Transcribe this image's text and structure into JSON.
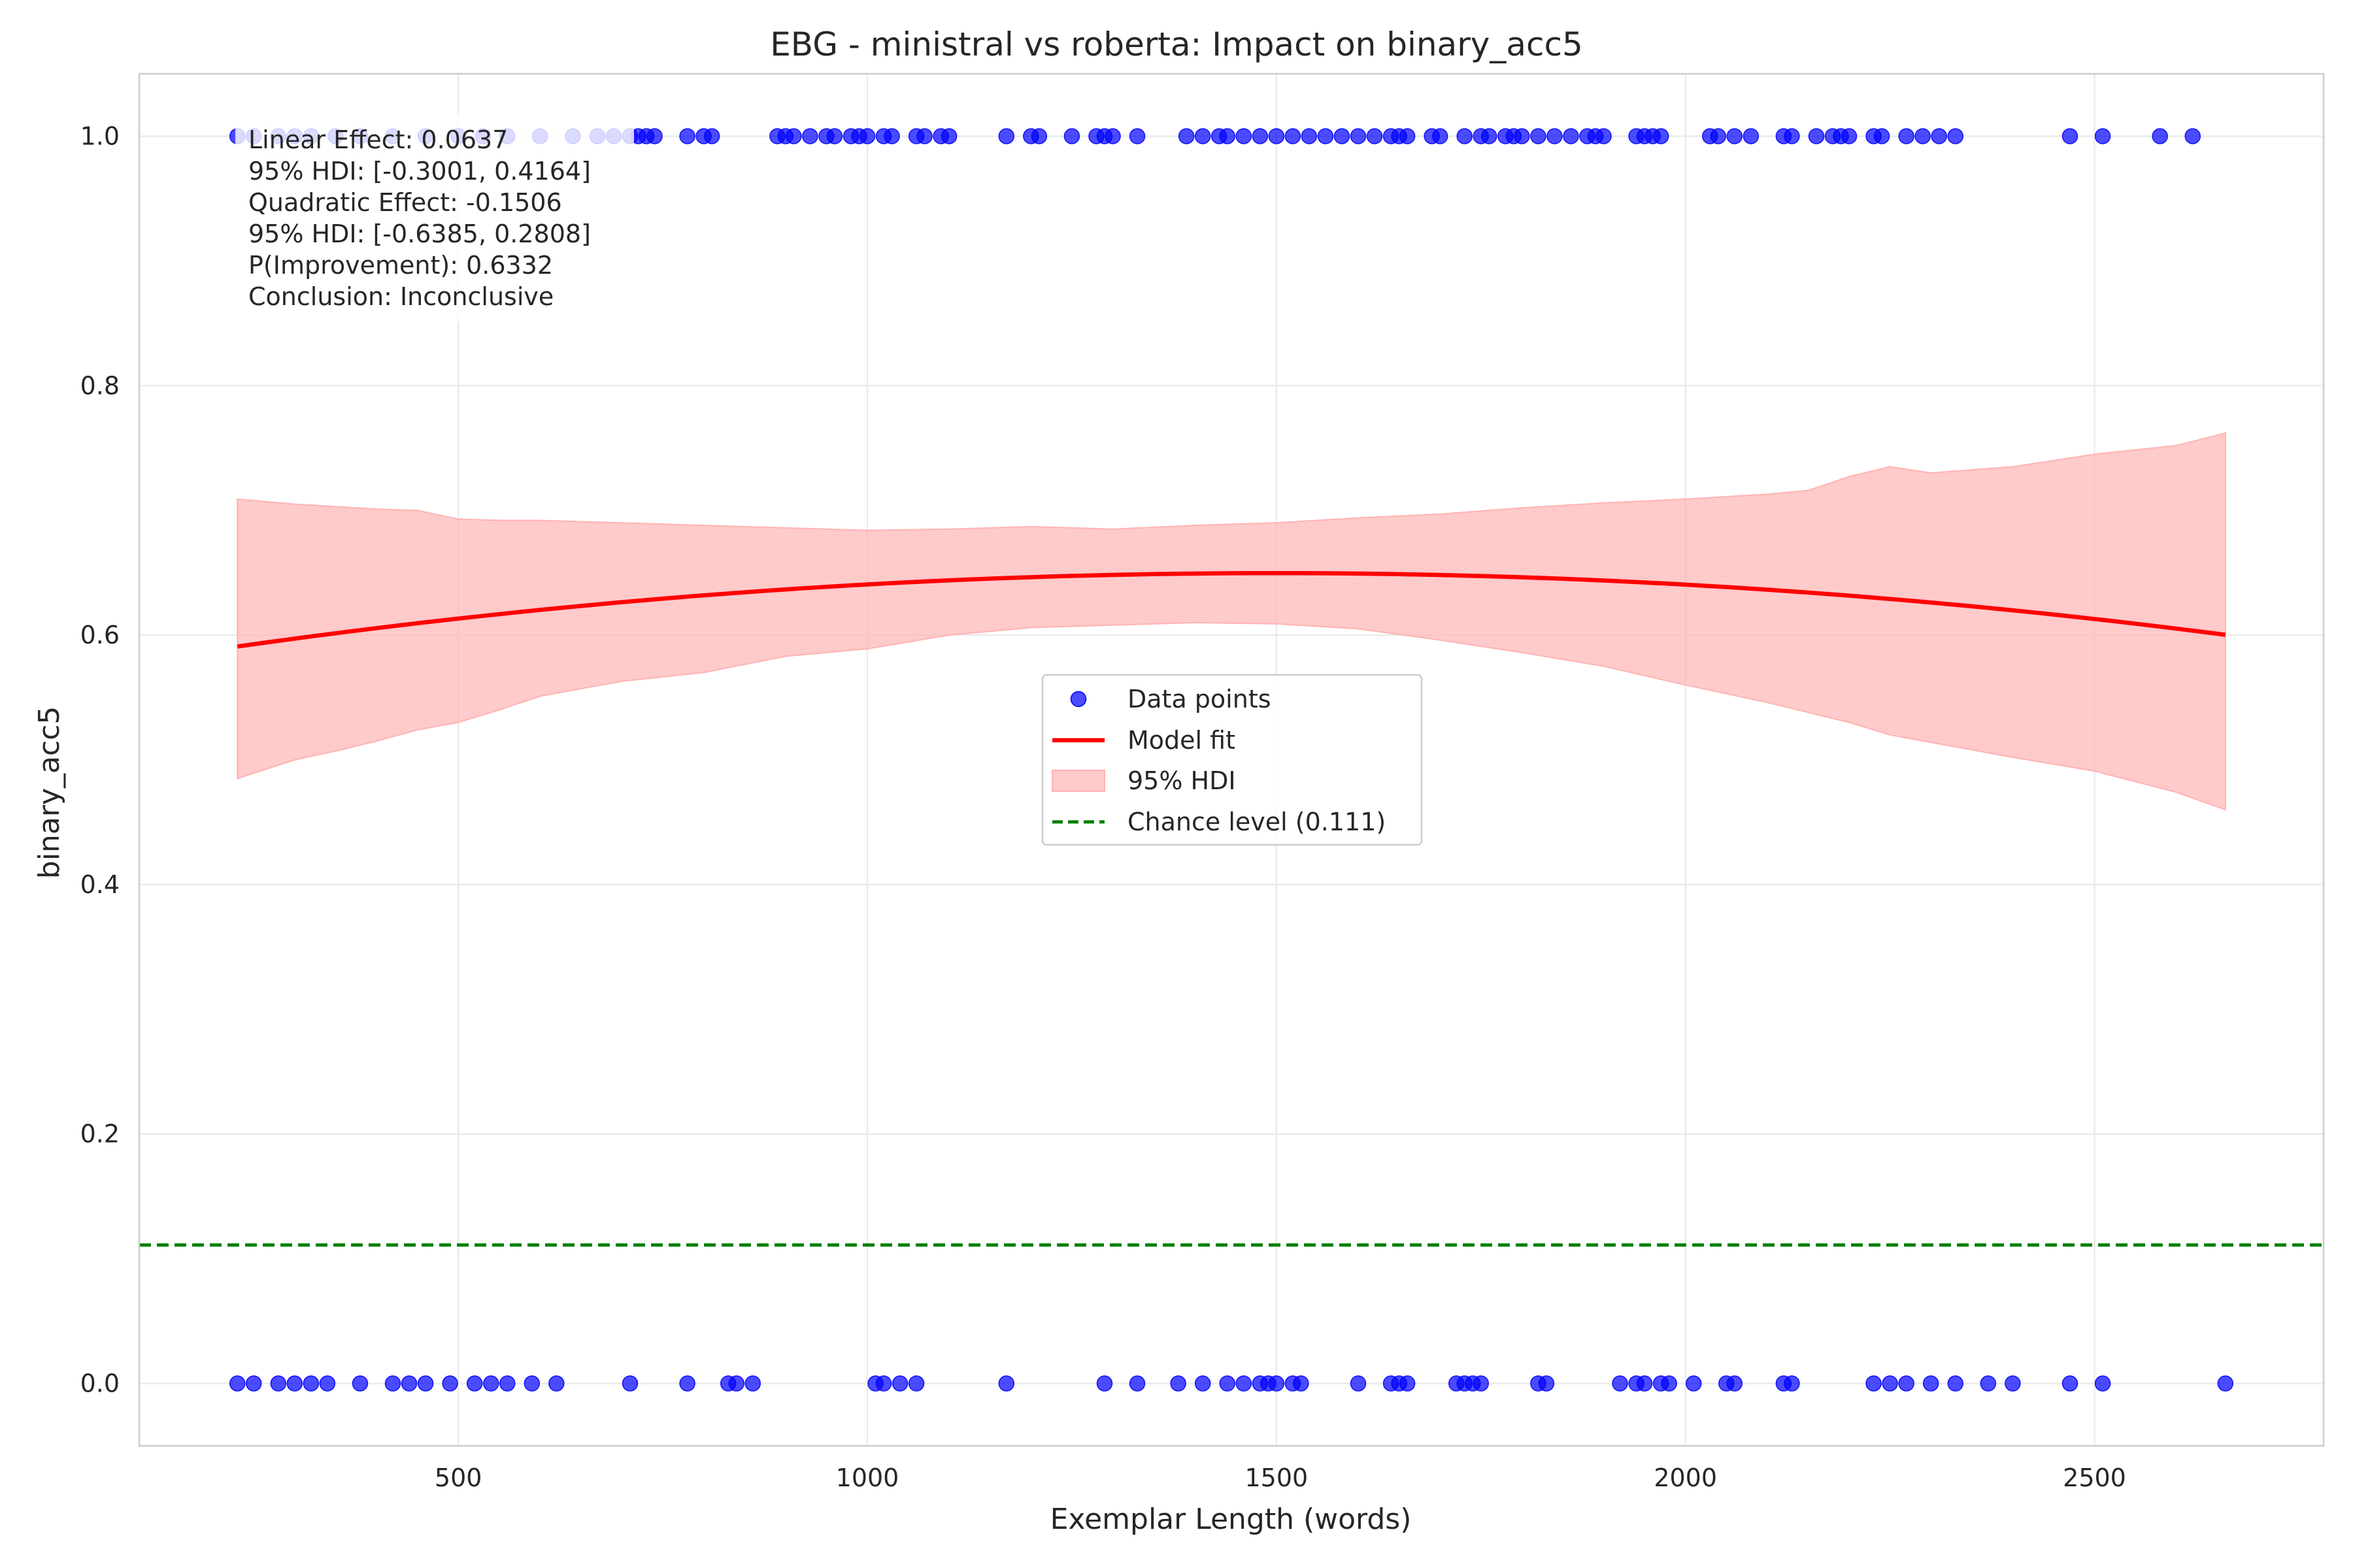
{
  "chart_data": {
    "type": "scatter",
    "title": "EBG - ministral vs roberta: Impact on binary_acc5",
    "xlabel": "Exemplar Length (words)",
    "ylabel": "binary_acc5",
    "xlim": [
      110,
      2780
    ],
    "ylim": [
      -0.05,
      1.05
    ],
    "x_ticks": [
      500,
      1000,
      1500,
      2000,
      2500
    ],
    "y_ticks": [
      0.0,
      0.2,
      0.4,
      0.6,
      0.8,
      1.0
    ],
    "x_tick_labels": [
      "500",
      "1000",
      "1500",
      "2000",
      "2500"
    ],
    "y_tick_labels": [
      "0.0",
      "0.2",
      "0.4",
      "0.6",
      "0.8",
      "1.0"
    ],
    "grid": true,
    "legend_position": "center",
    "colors": {
      "points": "#0000ff",
      "fit": "#ff0000",
      "hdi": "#ffb3b3",
      "chance": "#008000"
    },
    "series": [
      {
        "name": "Data points",
        "type": "scatter",
        "points_y1": [
          230,
          250,
          280,
          300,
          320,
          350,
          380,
          420,
          460,
          500,
          530,
          560,
          600,
          640,
          670,
          690,
          710,
          720,
          730,
          740,
          780,
          800,
          810,
          890,
          900,
          910,
          930,
          950,
          960,
          980,
          990,
          1000,
          1020,
          1030,
          1060,
          1070,
          1090,
          1100,
          1170,
          1200,
          1210,
          1250,
          1280,
          1290,
          1300,
          1330,
          1390,
          1410,
          1430,
          1440,
          1460,
          1480,
          1500,
          1520,
          1540,
          1560,
          1580,
          1600,
          1620,
          1640,
          1650,
          1660,
          1690,
          1700,
          1730,
          1750,
          1760,
          1780,
          1790,
          1800,
          1820,
          1840,
          1860,
          1880,
          1890,
          1900,
          1940,
          1950,
          1960,
          1970,
          2030,
          2040,
          2060,
          2080,
          2120,
          2130,
          2160,
          2180,
          2190,
          2200,
          2230,
          2240,
          2270,
          2290,
          2310,
          2330,
          2470,
          2510,
          2580,
          2620
        ],
        "points_y0": [
          230,
          250,
          280,
          300,
          320,
          340,
          380,
          420,
          440,
          460,
          490,
          520,
          540,
          560,
          590,
          620,
          710,
          780,
          830,
          840,
          860,
          1010,
          1020,
          1040,
          1060,
          1170,
          1290,
          1330,
          1380,
          1410,
          1440,
          1460,
          1480,
          1490,
          1500,
          1520,
          1530,
          1600,
          1640,
          1650,
          1660,
          1720,
          1730,
          1740,
          1750,
          1820,
          1830,
          1920,
          1940,
          1950,
          1970,
          1980,
          2010,
          2050,
          2060,
          2120,
          2130,
          2230,
          2250,
          2270,
          2300,
          2330,
          2370,
          2400,
          2470,
          2510,
          2660
        ]
      },
      {
        "name": "Model fit",
        "type": "line",
        "x": [
          230,
          500,
          1000,
          1480,
          2000,
          2500,
          2660
        ],
        "y": [
          0.591,
          0.613,
          0.641,
          0.649,
          0.641,
          0.613,
          0.6
        ]
      },
      {
        "name": "95% HDI",
        "type": "area",
        "x": [
          230,
          300,
          350,
          400,
          450,
          500,
          550,
          600,
          700,
          800,
          900,
          1000,
          1100,
          1200,
          1300,
          1400,
          1500,
          1600,
          1700,
          1800,
          1900,
          2000,
          2100,
          2150,
          2200,
          2250,
          2300,
          2400,
          2500,
          2600,
          2660
        ],
        "lower": [
          0.485,
          0.5,
          0.507,
          0.515,
          0.524,
          0.53,
          0.54,
          0.551,
          0.563,
          0.57,
          0.583,
          0.589,
          0.6,
          0.606,
          0.608,
          0.61,
          0.609,
          0.605,
          0.596,
          0.586,
          0.575,
          0.56,
          0.546,
          0.538,
          0.53,
          0.52,
          0.514,
          0.502,
          0.491,
          0.474,
          0.46
        ],
        "upper": [
          0.709,
          0.705,
          0.703,
          0.701,
          0.7,
          0.693,
          0.692,
          0.692,
          0.69,
          0.688,
          0.686,
          0.684,
          0.685,
          0.687,
          0.685,
          0.688,
          0.69,
          0.694,
          0.697,
          0.702,
          0.706,
          0.709,
          0.713,
          0.716,
          0.727,
          0.735,
          0.73,
          0.735,
          0.745,
          0.752,
          0.762
        ]
      },
      {
        "name": "Chance level (0.111)",
        "type": "hline",
        "y": 0.111
      }
    ],
    "annotations": [
      "Linear Effect: 0.0637",
      "95% HDI: [-0.3001, 0.4164]",
      "Quadratic Effect: -0.1506",
      "95% HDI: [-0.6385, 0.2808]",
      "P(Improvement): 0.6332",
      "Conclusion: Inconclusive"
    ]
  }
}
